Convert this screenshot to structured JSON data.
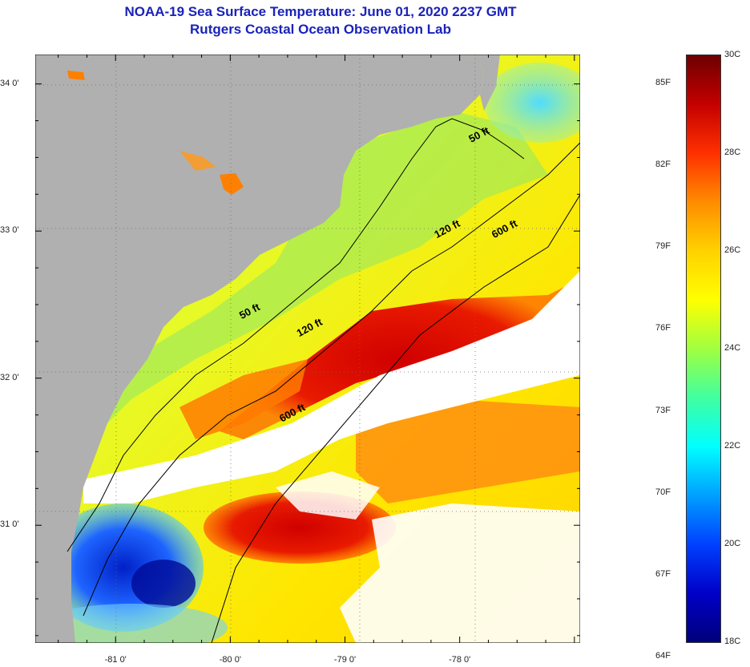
{
  "title_line1": "NOAA-19 Sea Surface Temperature:  June 01, 2020 2237 GMT",
  "title_line2": "Rutgers Coastal Ocean Observation Lab",
  "lat_labels": [
    {
      "text": "34 0'",
      "lat": 34.0
    },
    {
      "text": "33 0'",
      "lat": 33.0
    },
    {
      "text": "32 0'",
      "lat": 32.0
    },
    {
      "text": "31 0'",
      "lat": 31.0
    }
  ],
  "lon_labels": [
    {
      "text": "-81 0'",
      "lon": -81.0
    },
    {
      "text": "-80 0'",
      "lon": -80.0
    },
    {
      "text": "-79 0'",
      "lon": -79.0
    },
    {
      "text": "-78 0'",
      "lon": -78.0
    }
  ],
  "map_extent": {
    "lon_min": -81.7,
    "lon_max": -76.95,
    "lat_min": 30.2,
    "lat_max": 34.2
  },
  "contour_labels": [
    {
      "text": "50 ft",
      "lon": -77.9,
      "lat": 33.6
    },
    {
      "text": "50 ft",
      "lon": -79.9,
      "lat": 32.4
    },
    {
      "text": "120 ft",
      "lon": -78.2,
      "lat": 32.95
    },
    {
      "text": "120 ft",
      "lon": -79.4,
      "lat": 32.28
    },
    {
      "text": "600 ft",
      "lon": -77.7,
      "lat": 32.95
    },
    {
      "text": "600 ft",
      "lon": -79.55,
      "lat": 31.7
    }
  ],
  "colorbar": {
    "fahrenheit": [
      "85F",
      "82F",
      "79F",
      "76F",
      "73F",
      "70F",
      "67F",
      "64F"
    ],
    "celsius": [
      "30C",
      "28C",
      "26C",
      "24C",
      "22C",
      "20C",
      "18C"
    ],
    "colors_top_to_bottom": [
      "#6e0000",
      "#c40000",
      "#ff3000",
      "#ff8c00",
      "#ffd200",
      "#ffff00",
      "#a0ff40",
      "#40ffa0",
      "#00ffff",
      "#00a0ff",
      "#0040ff",
      "#0000c8",
      "#00007a"
    ]
  },
  "colors": {
    "land": "#b0b0b0",
    "cloud": "#ffffff",
    "title": "#1a23b8"
  }
}
